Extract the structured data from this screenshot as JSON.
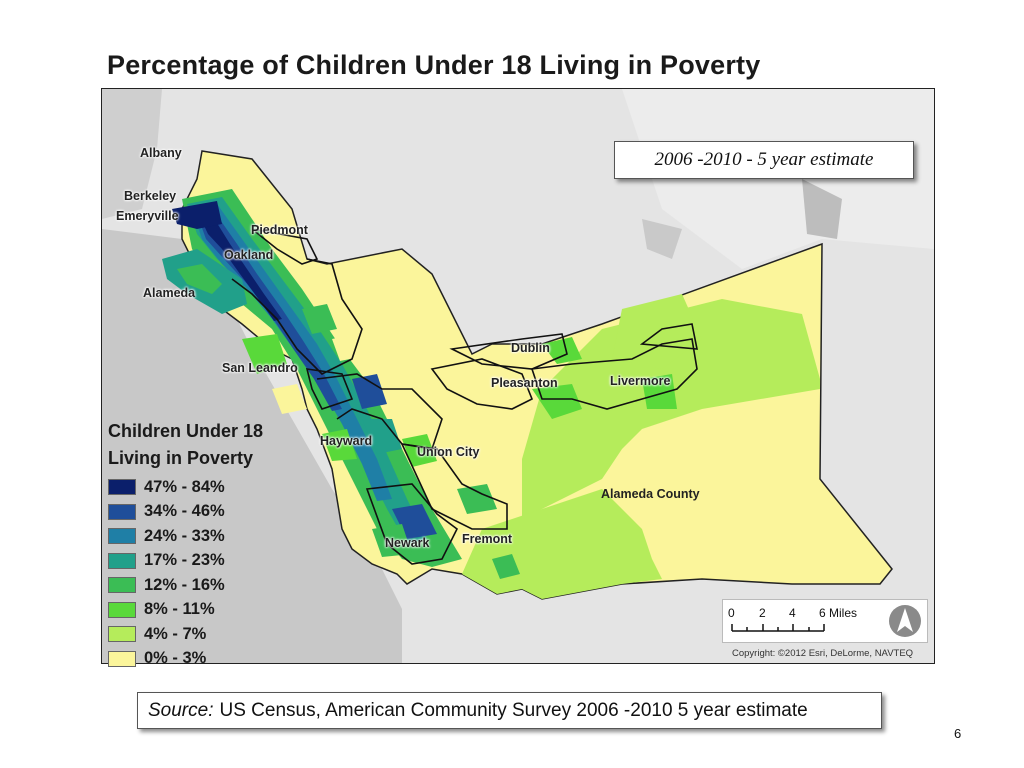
{
  "title": "Percentage of Children Under 18 Living in Poverty",
  "estimate_label": "2006 -2010 - 5 year estimate",
  "legend": {
    "title_line1": "Children Under 18",
    "title_line2": "Living in Poverty",
    "items": [
      {
        "label": "47% - 84%",
        "color": "#0b1f6b"
      },
      {
        "label": "34% - 46%",
        "color": "#1f4e9a"
      },
      {
        "label": "24% - 33%",
        "color": "#1f7fa6"
      },
      {
        "label": "17% - 23%",
        "color": "#21a08a"
      },
      {
        "label": "12% - 16%",
        "color": "#3bbd55"
      },
      {
        "label": "8% - 11%",
        "color": "#59d93a"
      },
      {
        "label": "4% - 7%",
        "color": "#b5ec5b"
      },
      {
        "label": "0% - 3%",
        "color": "#fbf59b"
      }
    ]
  },
  "places": {
    "albany": "Albany",
    "berkeley": "Berkeley",
    "emeryville": "Emeryville",
    "piedmont": "Piedmont",
    "oakland": "Oakland",
    "alameda": "Alameda",
    "san_leandro": "San Leandro",
    "hayward": "Hayward",
    "union_city": "Union City",
    "newark": "Newark",
    "fremont": "Fremont",
    "dublin": "Dublin",
    "pleasanton": "Pleasanton",
    "livermore": "Livermore",
    "alameda_county": "Alameda County"
  },
  "scale": {
    "t0": "0",
    "t2": "2",
    "t4": "4",
    "t6": "6 Miles"
  },
  "copyright": "Copyright: ©2012 Esri, DeLorme, NAVTEQ",
  "source": {
    "label": "Source:",
    "text": "US Census, American Community Survey 2006 -2010 5 year estimate"
  },
  "page_number": "6"
}
